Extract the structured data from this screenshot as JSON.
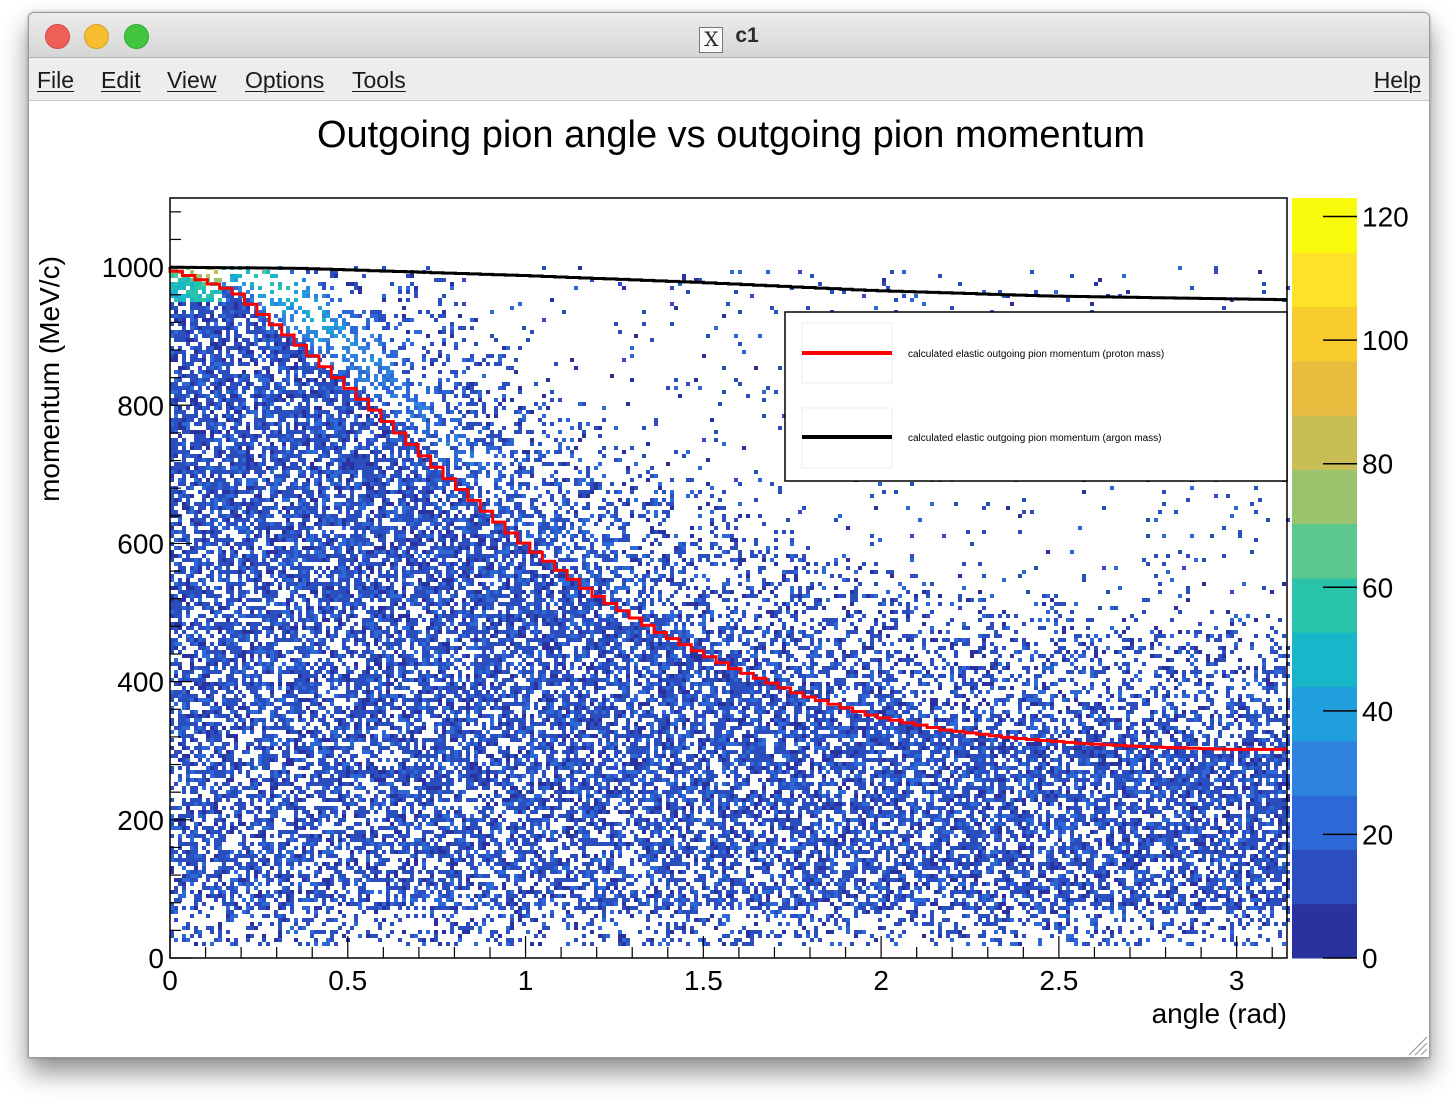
{
  "window": {
    "title": "c1"
  },
  "menu": {
    "file": "File",
    "edit": "Edit",
    "view": "View",
    "options": "Options",
    "tools": "Tools",
    "help": "Help"
  },
  "colors": {
    "proton_curve": "#ff0000",
    "argon_curve": "#000000",
    "palette": [
      "#2a32a0",
      "#2b4ebf",
      "#2c69d6",
      "#2f83df",
      "#1f9fdc",
      "#17b6c9",
      "#29c3ab",
      "#5cc78d",
      "#9bc46e",
      "#c9bd56",
      "#e8bd3f",
      "#f8cc2e",
      "#fde227",
      "#f9fb0e"
    ]
  },
  "chart_data": {
    "type": "heatmap",
    "title": "Outgoing pion angle vs outgoing pion momentum",
    "xlabel": "angle (rad)",
    "ylabel": "momentum (MeV/c)",
    "xlim": [
      0,
      3.14159
    ],
    "ylim": [
      0,
      1100
    ],
    "zlim": [
      0,
      123
    ],
    "x_ticks": [
      "0",
      "0.5",
      "1",
      "1.5",
      "2",
      "2.5",
      "3"
    ],
    "x_tick_values": [
      0,
      0.5,
      1,
      1.5,
      2,
      2.5,
      3
    ],
    "y_ticks": [
      "0",
      "200",
      "400",
      "600",
      "800",
      "1000"
    ],
    "y_tick_values": [
      0,
      200,
      400,
      600,
      800,
      1000
    ],
    "z_ticks": [
      "0",
      "20",
      "40",
      "60",
      "80",
      "100",
      "120"
    ],
    "z_tick_values": [
      0,
      20,
      40,
      60,
      80,
      100,
      120
    ],
    "legend_position": "top-right",
    "series": [
      {
        "name": "calculated elastic outgoing pion momentum (proton mass)",
        "x": [
          0,
          0.2,
          0.4,
          0.6,
          0.8,
          1.0,
          1.2,
          1.4,
          1.6,
          1.8,
          2.0,
          2.2,
          2.4,
          2.6,
          2.8,
          3.0,
          3.14
        ],
        "y": [
          1000,
          965,
          880,
          790,
          695,
          605,
          530,
          470,
          420,
          380,
          350,
          330,
          318,
          310,
          305,
          302,
          302
        ]
      },
      {
        "name": "calculated elastic outgoing pion momentum (argon mass)",
        "x": [
          0,
          0.4,
          1.0,
          1.5,
          2.0,
          2.5,
          3.14
        ],
        "y": [
          1000,
          998,
          988,
          978,
          966,
          958,
          953
        ]
      }
    ]
  }
}
